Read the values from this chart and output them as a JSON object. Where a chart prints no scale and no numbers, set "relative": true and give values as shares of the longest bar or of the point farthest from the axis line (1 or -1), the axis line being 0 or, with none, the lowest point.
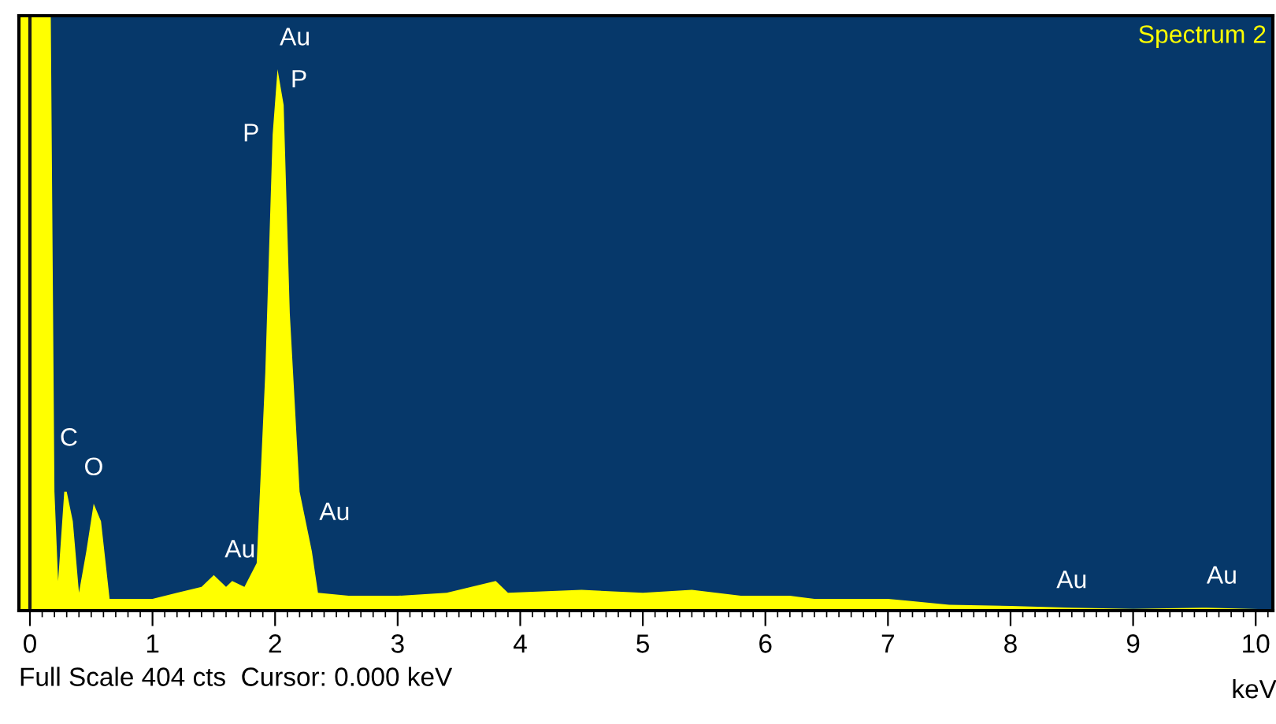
{
  "chart_data": {
    "type": "area",
    "relative": true,
    "xlabel": "keV",
    "xlim": [
      -0.09,
      10.14
    ],
    "xticks": [
      0,
      1,
      2,
      3,
      4,
      5,
      6,
      7,
      8,
      9,
      10
    ],
    "x": [
      -0.09,
      0.17,
      0.2,
      0.23,
      0.28,
      0.3,
      0.35,
      0.4,
      0.46,
      0.52,
      0.58,
      0.65,
      0.8,
      1.0,
      1.2,
      1.4,
      1.5,
      1.6,
      1.65,
      1.75,
      1.85,
      1.92,
      1.98,
      2.02,
      2.07,
      2.12,
      2.2,
      2.3,
      2.35,
      2.6,
      3.0,
      3.4,
      3.8,
      3.9,
      4.5,
      5.0,
      5.4,
      5.8,
      6.2,
      6.4,
      7.0,
      7.5,
      8.0,
      8.5,
      9.0,
      9.6,
      10.14
    ],
    "series": [
      {
        "color": "#ffff00",
        "values": [
          1,
          1,
          0.2,
          0.05,
          0.2,
          0.2,
          0.15,
          0.03,
          0.1,
          0.18,
          0.15,
          0.02,
          0.02,
          0.02,
          0.03,
          0.04,
          0.06,
          0.04,
          0.05,
          0.04,
          0.08,
          0.4,
          0.8,
          0.91,
          0.85,
          0.5,
          0.2,
          0.1,
          0.03,
          0.025,
          0.025,
          0.03,
          0.05,
          0.03,
          0.035,
          0.03,
          0.035,
          0.025,
          0.025,
          0.02,
          0.02,
          0.01,
          0.008,
          0.005,
          0.003,
          0.005,
          0.002
        ]
      }
    ],
    "ref_lines": [
      {
        "axis": "x",
        "value": 0,
        "color": "#1a1a1a"
      }
    ],
    "annotations": [
      "Spectrum 2",
      "Full Scale 404 cts  Cursor: 0.000 keV",
      {
        "text": "C",
        "x": 0.3,
        "y": 0.2
      },
      {
        "text": "O",
        "x": 0.52,
        "y": 0.18
      },
      {
        "text": "Au",
        "x": 2.02,
        "y": 0.91
      },
      {
        "text": "P",
        "x": 2.07,
        "y": 0.85
      },
      {
        "text": "P",
        "x": 1.98,
        "y": 0.8
      },
      {
        "text": "Au",
        "x": 2.2,
        "y": 0.2
      },
      {
        "text": "Au",
        "x": 1.5,
        "y": 0.06
      },
      {
        "text": "Au",
        "x": 8.5,
        "y": 0.005
      },
      {
        "text": "Au",
        "x": 9.6,
        "y": 0.005
      }
    ]
  }
}
